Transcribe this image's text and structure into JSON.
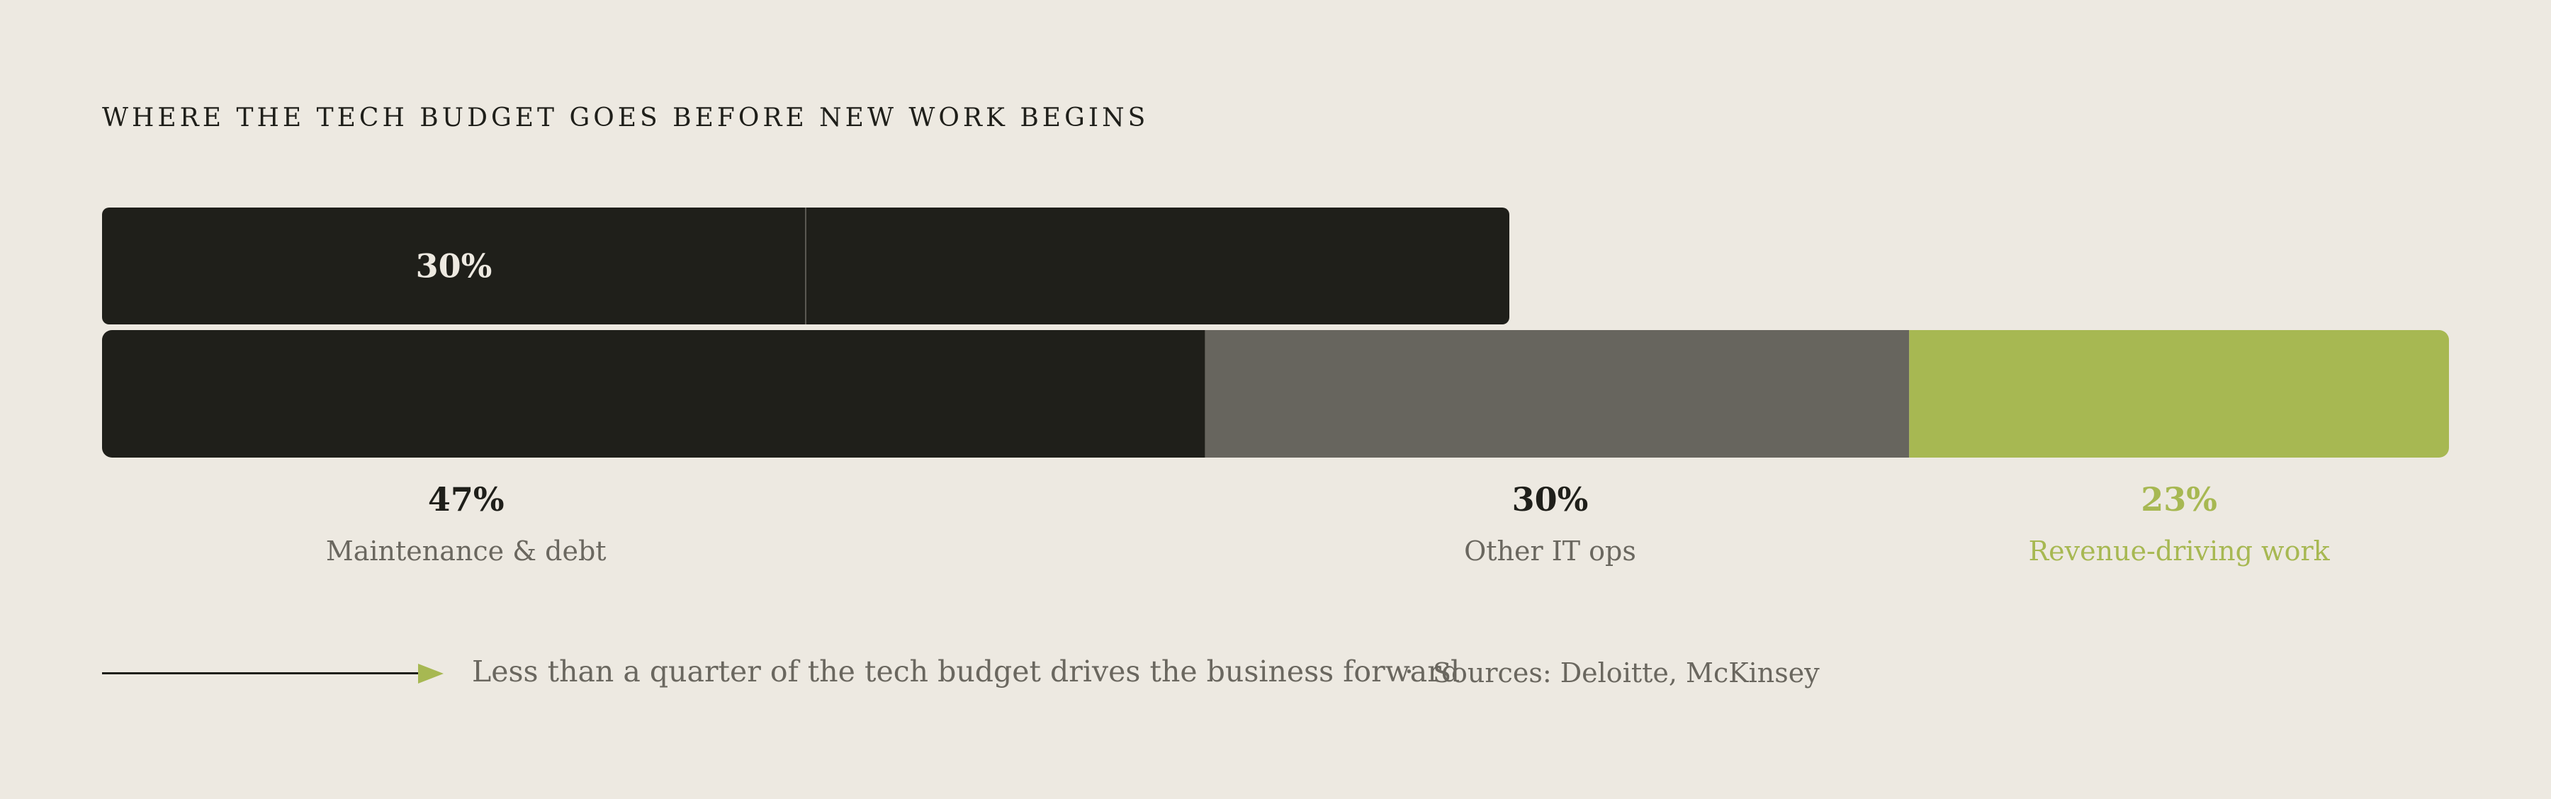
{
  "title": "WHERE THE TECH BUDGET GOES BEFORE NEW WORK BEGINS",
  "chart_data": {
    "type": "bar",
    "orientation": "horizontal-stacked",
    "unit": "%",
    "total": 100,
    "breakdown_bar": {
      "label": "30%",
      "value": 30,
      "split_fraction": 0.5,
      "color": "#1f1f1a"
    },
    "segments": [
      {
        "label": "Maintenance & debt",
        "value": 47,
        "value_label": "47%",
        "color": "#1f1f1a",
        "text_color": "#1f1f1a"
      },
      {
        "label": "Other IT ops",
        "value": 30,
        "value_label": "30%",
        "color": "#67655e",
        "text_color": "#1f1f1a"
      },
      {
        "label": "Revenue-driving work",
        "value": 23,
        "value_label": "23%",
        "color": "#a7b852",
        "text_color": "#a7b852"
      }
    ],
    "colors": {
      "background": "#ede9e1",
      "accent": "#a7b852",
      "dark": "#1f1f1a",
      "muted": "#6a675f"
    }
  },
  "footer": {
    "note": "Less than a quarter of the tech budget drives the business forward",
    "separator": "·",
    "source": "Sources: Deloitte, McKinsey"
  }
}
